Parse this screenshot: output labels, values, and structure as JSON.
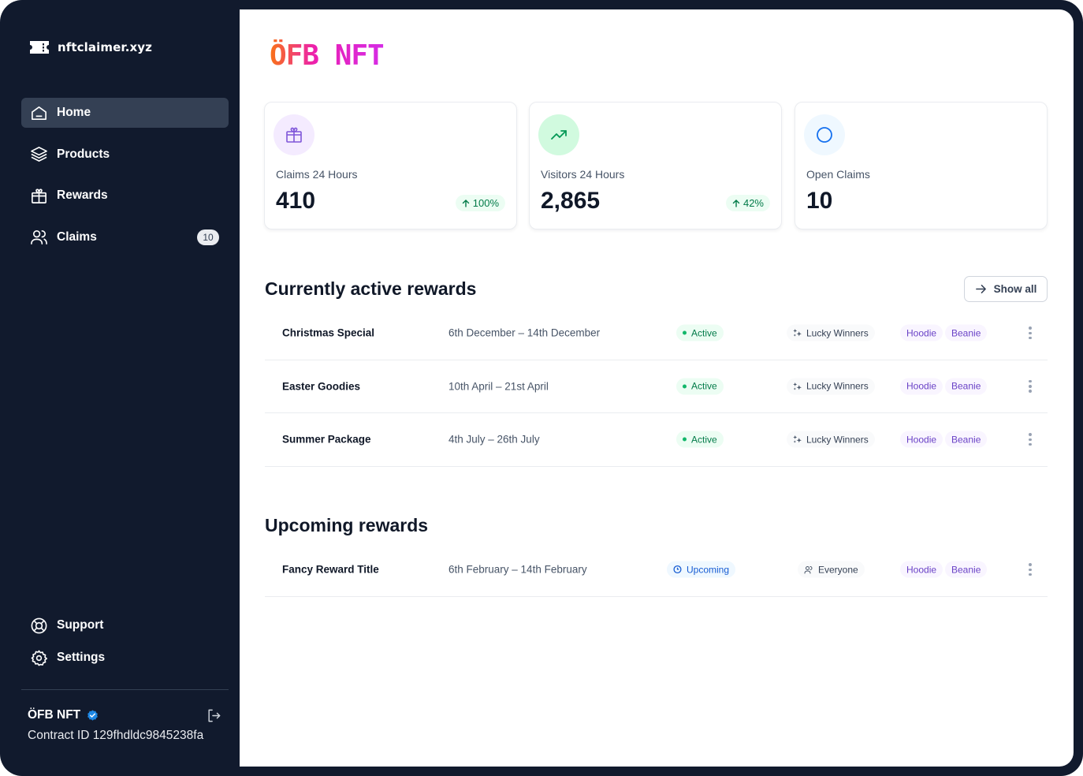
{
  "app": {
    "name": "nftclaimer.xyz"
  },
  "nav": {
    "items": [
      {
        "label": "Home",
        "icon": "home-icon",
        "active": true
      },
      {
        "label": "Products",
        "icon": "layers-icon"
      },
      {
        "label": "Rewards",
        "icon": "gift-icon"
      },
      {
        "label": "Claims",
        "icon": "users-icon",
        "badge": "10"
      }
    ],
    "bottom": [
      {
        "label": "Support",
        "icon": "life-buoy-icon"
      },
      {
        "label": "Settings",
        "icon": "gear-icon"
      }
    ]
  },
  "account": {
    "name": "ÖFB NFT",
    "contract": "Contract ID 129fhdldc9845238fa"
  },
  "page": {
    "title": "ÖFB NFT"
  },
  "stats": [
    {
      "label": "Claims 24 Hours",
      "value": "410",
      "delta": "100%",
      "icon": "gift-icon",
      "icon_color": "#7f56d9",
      "icon_bg": "#f4ebff"
    },
    {
      "label": "Visitors 24 Hours",
      "value": "2,865",
      "delta": "42%",
      "icon": "trend-up-icon",
      "icon_color": "#039855",
      "icon_bg": "#d1fadf"
    },
    {
      "label": "Open Claims",
      "value": "10",
      "icon": "circle-icon",
      "icon_color": "#1570ef",
      "icon_bg": "#eff8ff"
    }
  ],
  "active_rewards": {
    "title": "Currently active rewards",
    "show_all": "Show all",
    "rows": [
      {
        "name": "Christmas Special",
        "dates": "6th December – 14th December",
        "status": "Active",
        "audience": "Lucky Winners",
        "tags": [
          "Hoodie",
          "Beanie"
        ]
      },
      {
        "name": "Easter Goodies",
        "dates": "10th April – 21st April",
        "status": "Active",
        "audience": "Lucky Winners",
        "tags": [
          "Hoodie",
          "Beanie"
        ]
      },
      {
        "name": "Summer Package",
        "dates": "4th July – 26th July",
        "status": "Active",
        "audience": "Lucky Winners",
        "tags": [
          "Hoodie",
          "Beanie"
        ]
      }
    ]
  },
  "upcoming_rewards": {
    "title": "Upcoming rewards",
    "rows": [
      {
        "name": "Fancy Reward Title",
        "dates": "6th February – 14th February",
        "status": "Upcoming",
        "audience": "Everyone",
        "tags": [
          "Hoodie",
          "Beanie"
        ]
      }
    ]
  },
  "colors": {
    "sidebar": "#111a2d",
    "accent_active": "#344054",
    "success": "#027a48",
    "brand_purple": "#6941c6"
  }
}
